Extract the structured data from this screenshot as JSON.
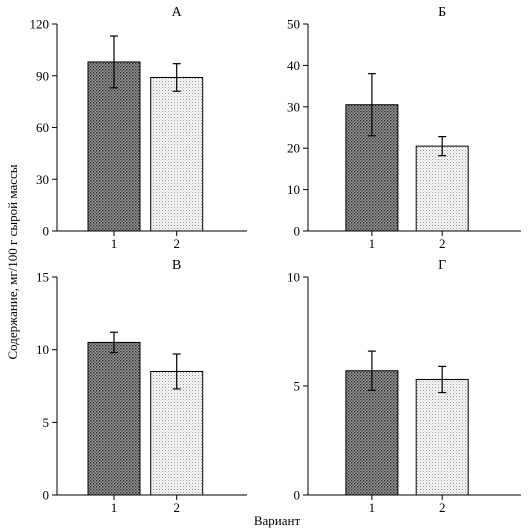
{
  "figure": {
    "ylabel": "Содержание, мг/100 г сырой массы",
    "xlabel": "Вариант"
  },
  "chart_data": [
    {
      "type": "bar",
      "title": "А",
      "categories": [
        "1",
        "2"
      ],
      "values": [
        98,
        89
      ],
      "errors": [
        15,
        8
      ],
      "ylim": [
        0,
        120
      ],
      "yticks": [
        0,
        30,
        60,
        90,
        120
      ],
      "bar_patterns": [
        "dark-dots",
        "light-dots"
      ],
      "grid": false
    },
    {
      "type": "bar",
      "title": "Б",
      "categories": [
        "1",
        "2"
      ],
      "values": [
        30.5,
        20.5
      ],
      "errors": [
        7.5,
        2.3
      ],
      "ylim": [
        0,
        50
      ],
      "yticks": [
        0,
        10,
        20,
        30,
        40,
        50
      ],
      "bar_patterns": [
        "dark-dots",
        "light-dots"
      ],
      "grid": false
    },
    {
      "type": "bar",
      "title": "В",
      "categories": [
        "1",
        "2"
      ],
      "values": [
        10.5,
        8.5
      ],
      "errors": [
        0.7,
        1.2
      ],
      "ylim": [
        0,
        15
      ],
      "yticks": [
        0,
        5,
        10,
        15
      ],
      "bar_patterns": [
        "dark-dots",
        "light-dots"
      ],
      "grid": false
    },
    {
      "type": "bar",
      "title": "Г",
      "categories": [
        "1",
        "2"
      ],
      "values": [
        5.7,
        5.3
      ],
      "errors": [
        0.9,
        0.6
      ],
      "ylim": [
        0,
        10
      ],
      "yticks": [
        0,
        5,
        10
      ],
      "bar_patterns": [
        "dark-dots",
        "light-dots"
      ],
      "grid": false
    }
  ],
  "colors": {
    "bar_dark_fill": "#7a7a7a",
    "bar_light_fill": "#e9e9e9",
    "axis": "#000000"
  }
}
